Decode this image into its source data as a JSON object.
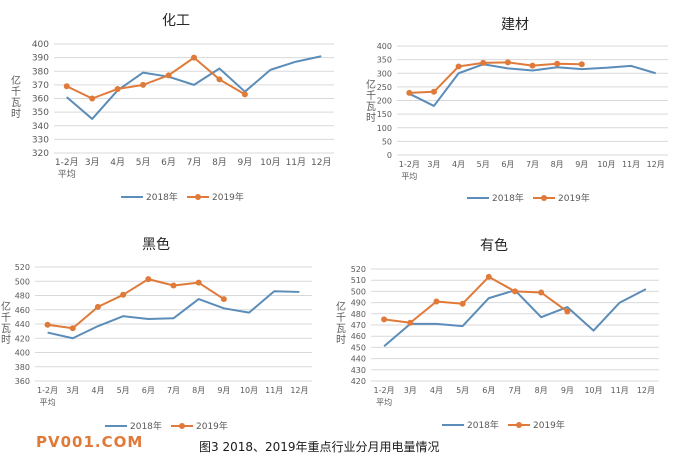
{
  "colors": {
    "s2018": "#5b8db8",
    "s2019": "#e07a3a",
    "grid": "#d9d9d9",
    "text": "#595959"
  },
  "watermark": "PV001.COM",
  "caption": "图3   2018、2019年重点行业分月用电量情况",
  "chart_data": [
    {
      "type": "line",
      "title": "化工",
      "ylabel": "亿千瓦时",
      "ylim": [
        320,
        400
      ],
      "yticks": [
        320,
        330,
        340,
        350,
        360,
        370,
        380,
        390,
        400
      ],
      "categories": [
        "1-2月平均",
        "3月",
        "4月",
        "5月",
        "6月",
        "7月",
        "8月",
        "9月",
        "10月",
        "11月",
        "12月"
      ],
      "series": [
        {
          "name": "2018年",
          "values": [
            361,
            345,
            366,
            379,
            376,
            370,
            382,
            365,
            381,
            387,
            391
          ]
        },
        {
          "name": "2019年",
          "values": [
            369,
            360,
            367,
            370,
            377,
            390,
            374,
            363,
            null,
            null,
            null
          ]
        }
      ],
      "grid": true,
      "legend": "bottom"
    },
    {
      "type": "line",
      "title": "建材",
      "ylabel": "亿千瓦时",
      "ylim": [
        0,
        400
      ],
      "yticks": [
        0,
        50,
        100,
        150,
        200,
        250,
        300,
        350,
        400
      ],
      "categories": [
        "1-2月平均",
        "3月",
        "4月",
        "5月",
        "6月",
        "7月",
        "8月",
        "9月",
        "10月",
        "11月",
        "12月"
      ],
      "series": [
        {
          "name": "2018年",
          "values": [
            225,
            180,
            300,
            333,
            318,
            310,
            322,
            315,
            320,
            327,
            300
          ]
        },
        {
          "name": "2019年",
          "values": [
            228,
            232,
            325,
            338,
            340,
            328,
            335,
            333,
            null,
            null,
            null
          ]
        }
      ],
      "grid": true,
      "legend": "bottom"
    },
    {
      "type": "line",
      "title": "黑色",
      "ylabel": "亿千瓦时",
      "ylim": [
        360,
        520
      ],
      "yticks": [
        360,
        380,
        400,
        420,
        440,
        460,
        480,
        500,
        520
      ],
      "categories": [
        "1-2月平均",
        "3月",
        "4月",
        "5月",
        "6月",
        "7月",
        "8月",
        "9月",
        "10月",
        "11月",
        "12月"
      ],
      "series": [
        {
          "name": "2018年",
          "values": [
            428,
            420,
            437,
            451,
            447,
            448,
            475,
            462,
            456,
            486,
            485
          ]
        },
        {
          "name": "2019年",
          "values": [
            439,
            434,
            464,
            481,
            503,
            494,
            498,
            475,
            null,
            null,
            null
          ]
        }
      ],
      "grid": true,
      "legend": "bottom"
    },
    {
      "type": "line",
      "title": "有色",
      "ylabel": "亿千瓦时",
      "ylim": [
        420,
        520
      ],
      "yticks": [
        420,
        430,
        440,
        450,
        460,
        470,
        480,
        490,
        500,
        510,
        520
      ],
      "categories": [
        "1-2月平均",
        "3月",
        "4月",
        "5月",
        "6月",
        "7月",
        "8月",
        "9月",
        "10月",
        "11月",
        "12月"
      ],
      "series": [
        {
          "name": "2018年",
          "values": [
            451,
            471,
            471,
            469,
            494,
            501,
            477,
            486,
            465,
            490,
            502
          ]
        },
        {
          "name": "2019年",
          "values": [
            475,
            472,
            491,
            489,
            513,
            500,
            499,
            482,
            null,
            null,
            null
          ]
        }
      ],
      "grid": true,
      "legend": "bottom"
    }
  ]
}
